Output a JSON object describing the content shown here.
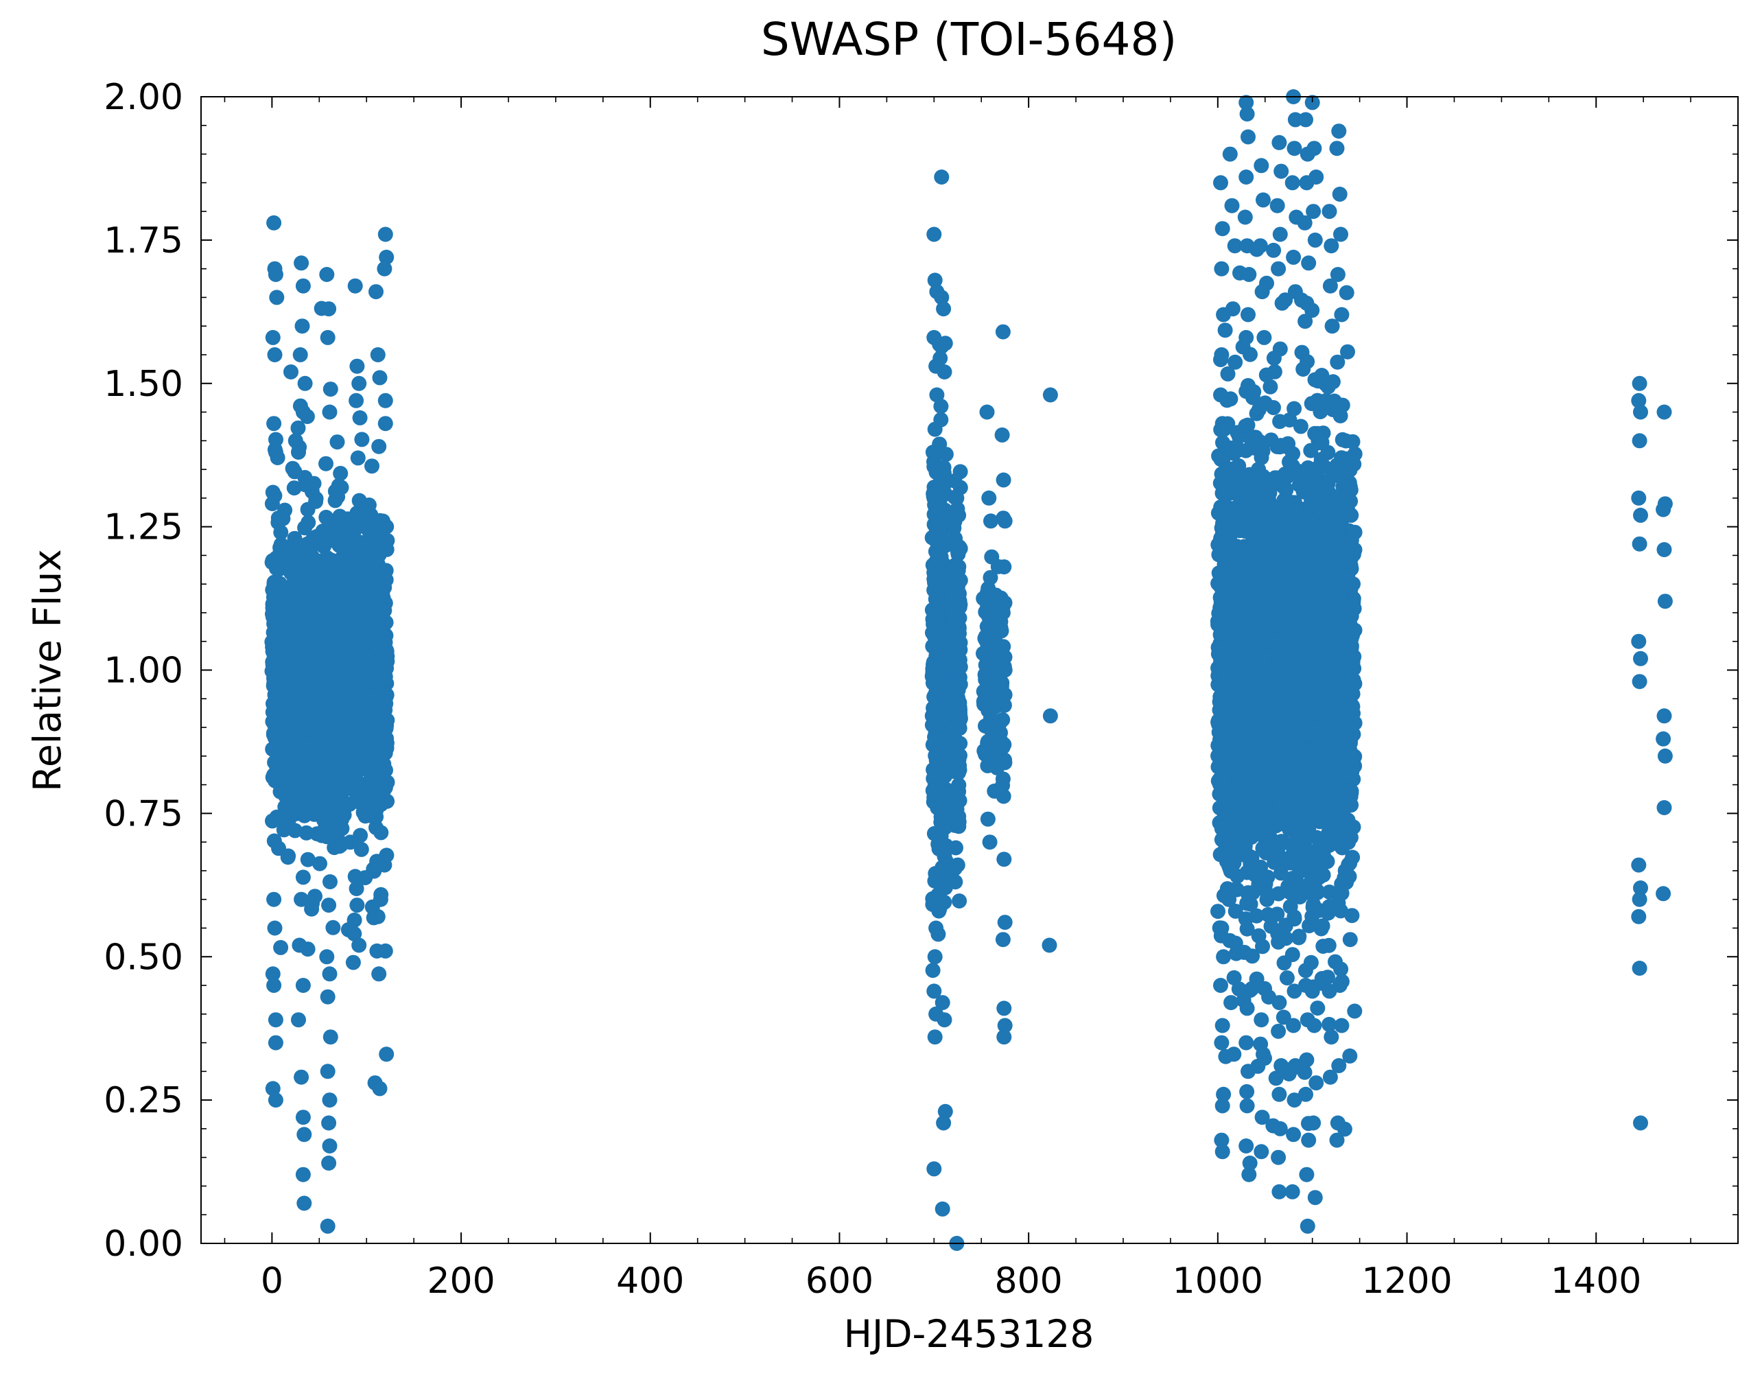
{
  "chart_data": {
    "type": "scatter",
    "title": "SWASP (TOI-5648)",
    "xlabel": "HJD-2453128",
    "ylabel": "Relative Flux",
    "xlim": [
      -75,
      1550
    ],
    "ylim": [
      0.0,
      2.0
    ],
    "xticks": [
      0,
      200,
      400,
      600,
      800,
      1000,
      1200,
      1400
    ],
    "xtick_labels": [
      "0",
      "200",
      "400",
      "600",
      "800",
      "1000",
      "1200",
      "1400"
    ],
    "yticks": [
      0.0,
      0.25,
      0.5,
      0.75,
      1.0,
      1.25,
      1.5,
      1.75,
      2.0
    ],
    "ytick_labels": [
      "0.00",
      "0.25",
      "0.50",
      "0.75",
      "1.00",
      "1.25",
      "1.50",
      "1.75",
      "2.00"
    ],
    "grid": false,
    "marker_color": "#1f77b4",
    "series": [
      {
        "points": [
          [
            2,
            1.78
          ],
          [
            3,
            1.7
          ],
          [
            4,
            1.69
          ],
          [
            5,
            1.65
          ],
          [
            1,
            1.58
          ],
          [
            3,
            1.55
          ],
          [
            2,
            1.43
          ],
          [
            4,
            1.38
          ],
          [
            1,
            1.31
          ],
          [
            2,
            0.6
          ],
          [
            3,
            0.55
          ],
          [
            1,
            0.47
          ],
          [
            2,
            0.45
          ],
          [
            4,
            0.39
          ],
          [
            4,
            0.35
          ],
          [
            1,
            0.27
          ],
          [
            4,
            0.25
          ],
          [
            20,
            1.52
          ],
          [
            25,
            1.4
          ],
          [
            31,
            1.71
          ],
          [
            33,
            1.67
          ],
          [
            32,
            1.6
          ],
          [
            30,
            1.55
          ],
          [
            35,
            1.5
          ],
          [
            33,
            1.45
          ],
          [
            28,
            1.38
          ],
          [
            31,
            0.6
          ],
          [
            29,
            0.52
          ],
          [
            33,
            0.45
          ],
          [
            28,
            0.39
          ],
          [
            31,
            0.29
          ],
          [
            33,
            0.22
          ],
          [
            34,
            0.19
          ],
          [
            33,
            0.12
          ],
          [
            34,
            0.07
          ],
          [
            58,
            1.69
          ],
          [
            60,
            1.63
          ],
          [
            59,
            1.58
          ],
          [
            62,
            1.49
          ],
          [
            61,
            1.45
          ],
          [
            57,
            1.36
          ],
          [
            60,
            0.59
          ],
          [
            58,
            0.5
          ],
          [
            61,
            0.47
          ],
          [
            59,
            0.43
          ],
          [
            62,
            0.36
          ],
          [
            59,
            0.3
          ],
          [
            61,
            0.25
          ],
          [
            60,
            0.21
          ],
          [
            61,
            0.17
          ],
          [
            60,
            0.14
          ],
          [
            59,
            0.03
          ],
          [
            88,
            1.67
          ],
          [
            90,
            1.53
          ],
          [
            92,
            1.5
          ],
          [
            89,
            1.47
          ],
          [
            93,
            1.44
          ],
          [
            91,
            1.37
          ],
          [
            88,
            0.64
          ],
          [
            90,
            0.59
          ],
          [
            87,
            0.54
          ],
          [
            92,
            0.52
          ],
          [
            86,
            0.49
          ],
          [
            110,
            1.66
          ],
          [
            112,
            1.55
          ],
          [
            114,
            1.51
          ],
          [
            113,
            1.39
          ],
          [
            115,
            0.6
          ],
          [
            112,
            0.57
          ],
          [
            111,
            0.51
          ],
          [
            113,
            0.47
          ],
          [
            109,
            0.28
          ],
          [
            114,
            0.27
          ],
          [
            120,
            1.76
          ],
          [
            121,
            1.72
          ],
          [
            119,
            1.7
          ],
          [
            120,
            1.47
          ],
          [
            120,
            1.43
          ],
          [
            121,
            1.25
          ],
          [
            119,
            0.66
          ],
          [
            120,
            0.51
          ],
          [
            121,
            0.33
          ],
          [
            700,
            1.76
          ],
          [
            701,
            1.68
          ],
          [
            703,
            1.66
          ],
          [
            700,
            1.58
          ],
          [
            702,
            1.53
          ],
          [
            703,
            1.48
          ],
          [
            701,
            1.42
          ],
          [
            699,
            1.38
          ],
          [
            700,
            0.6
          ],
          [
            702,
            0.55
          ],
          [
            701,
            0.5
          ],
          [
            700,
            0.44
          ],
          [
            702,
            0.4
          ],
          [
            701,
            0.36
          ],
          [
            700,
            0.13
          ],
          [
            708,
            1.86
          ],
          [
            708,
            1.65
          ],
          [
            710,
            1.63
          ],
          [
            712,
            1.57
          ],
          [
            711,
            1.52
          ],
          [
            709,
            0.42
          ],
          [
            711,
            0.39
          ],
          [
            712,
            0.23
          ],
          [
            710,
            0.21
          ],
          [
            709,
            0.06
          ],
          [
            722,
            1.33
          ],
          [
            724,
            1.3
          ],
          [
            726,
            1.27
          ],
          [
            723,
            0.69
          ],
          [
            725,
            0.66
          ],
          [
            724,
            0.0
          ],
          [
            756,
            1.45
          ],
          [
            758,
            1.3
          ],
          [
            760,
            1.26
          ],
          [
            757,
            0.74
          ],
          [
            759,
            0.7
          ],
          [
            773,
            1.59
          ],
          [
            772,
            1.41
          ],
          [
            775,
            1.26
          ],
          [
            774,
            1.18
          ],
          [
            773,
            1.1
          ],
          [
            775,
            1.0
          ],
          [
            774,
            0.87
          ],
          [
            773,
            0.81
          ],
          [
            774,
            0.67
          ],
          [
            775,
            0.56
          ],
          [
            773,
            0.53
          ],
          [
            774,
            0.41
          ],
          [
            775,
            0.38
          ],
          [
            774,
            0.36
          ],
          [
            823,
            1.48
          ],
          [
            823,
            0.92
          ],
          [
            822,
            0.52
          ],
          [
            1003,
            1.85
          ],
          [
            1005,
            1.77
          ],
          [
            1004,
            1.7
          ],
          [
            1006,
            1.62
          ],
          [
            1004,
            1.55
          ],
          [
            1003,
            1.48
          ],
          [
            1005,
            1.43
          ],
          [
            1004,
            0.55
          ],
          [
            1006,
            0.5
          ],
          [
            1003,
            0.45
          ],
          [
            1005,
            0.38
          ],
          [
            1004,
            0.35
          ],
          [
            1006,
            0.26
          ],
          [
            1005,
            0.24
          ],
          [
            1004,
            0.18
          ],
          [
            1005,
            0.16
          ],
          [
            1013,
            1.9
          ],
          [
            1015,
            1.81
          ],
          [
            1018,
            1.74
          ],
          [
            1016,
            1.63
          ],
          [
            1014,
            0.42
          ],
          [
            1017,
            0.33
          ],
          [
            1030,
            1.99
          ],
          [
            1031,
            1.97
          ],
          [
            1032,
            1.93
          ],
          [
            1030,
            1.86
          ],
          [
            1029,
            1.79
          ],
          [
            1031,
            1.74
          ],
          [
            1033,
            1.69
          ],
          [
            1032,
            1.62
          ],
          [
            1030,
            1.58
          ],
          [
            1031,
            0.41
          ],
          [
            1030,
            0.35
          ],
          [
            1032,
            0.3
          ],
          [
            1031,
            0.24
          ],
          [
            1030,
            0.17
          ],
          [
            1033,
            0.12
          ],
          [
            1034,
            0.14
          ],
          [
            1046,
            1.88
          ],
          [
            1048,
            1.82
          ],
          [
            1045,
            1.74
          ],
          [
            1047,
            1.66
          ],
          [
            1049,
            1.58
          ],
          [
            1046,
            0.39
          ],
          [
            1048,
            0.33
          ],
          [
            1047,
            0.22
          ],
          [
            1046,
            0.16
          ],
          [
            1065,
            1.92
          ],
          [
            1067,
            1.87
          ],
          [
            1063,
            1.81
          ],
          [
            1066,
            1.76
          ],
          [
            1064,
            1.7
          ],
          [
            1068,
            1.64
          ],
          [
            1066,
            1.56
          ],
          [
            1065,
            0.42
          ],
          [
            1064,
            0.37
          ],
          [
            1067,
            0.31
          ],
          [
            1065,
            0.26
          ],
          [
            1066,
            0.2
          ],
          [
            1064,
            0.15
          ],
          [
            1065,
            0.09
          ],
          [
            1080,
            2.0
          ],
          [
            1082,
            1.96
          ],
          [
            1081,
            1.91
          ],
          [
            1079,
            1.85
          ],
          [
            1083,
            1.79
          ],
          [
            1080,
            1.72
          ],
          [
            1082,
            1.66
          ],
          [
            1081,
            0.44
          ],
          [
            1080,
            0.38
          ],
          [
            1082,
            0.31
          ],
          [
            1081,
            0.25
          ],
          [
            1080,
            0.19
          ],
          [
            1079,
            0.09
          ],
          [
            1093,
            1.96
          ],
          [
            1095,
            1.9
          ],
          [
            1094,
            1.85
          ],
          [
            1092,
            1.78
          ],
          [
            1096,
            1.71
          ],
          [
            1094,
            1.64
          ],
          [
            1093,
            0.45
          ],
          [
            1095,
            0.39
          ],
          [
            1094,
            0.32
          ],
          [
            1093,
            0.26
          ],
          [
            1096,
            0.18
          ],
          [
            1094,
            0.12
          ],
          [
            1095,
            0.03
          ],
          [
            1100,
            1.99
          ],
          [
            1102,
            1.91
          ],
          [
            1104,
            1.86
          ],
          [
            1101,
            1.8
          ],
          [
            1103,
            1.75
          ],
          [
            1100,
            0.44
          ],
          [
            1102,
            0.38
          ],
          [
            1104,
            0.28
          ],
          [
            1101,
            0.21
          ],
          [
            1103,
            0.08
          ],
          [
            1118,
            1.8
          ],
          [
            1120,
            1.74
          ],
          [
            1119,
            1.67
          ],
          [
            1121,
            1.6
          ],
          [
            1118,
            0.44
          ],
          [
            1120,
            0.36
          ],
          [
            1119,
            0.29
          ],
          [
            1128,
            1.94
          ],
          [
            1126,
            1.91
          ],
          [
            1129,
            1.83
          ],
          [
            1130,
            1.76
          ],
          [
            1127,
            1.69
          ],
          [
            1131,
            1.62
          ],
          [
            1130,
            0.58
          ],
          [
            1129,
            0.45
          ],
          [
            1131,
            0.38
          ],
          [
            1128,
            0.31
          ],
          [
            1127,
            0.21
          ],
          [
            1126,
            0.18
          ],
          [
            1140,
            1.32
          ],
          [
            1141,
            1.27
          ],
          [
            1139,
            0.64
          ],
          [
            1140,
            0.53
          ],
          [
            1446,
            1.5
          ],
          [
            1445,
            1.47
          ],
          [
            1447,
            1.45
          ],
          [
            1446,
            1.4
          ],
          [
            1445,
            1.3
          ],
          [
            1447,
            1.27
          ],
          [
            1446,
            1.22
          ],
          [
            1445,
            1.05
          ],
          [
            1447,
            1.02
          ],
          [
            1446,
            0.98
          ],
          [
            1445,
            0.66
          ],
          [
            1447,
            0.62
          ],
          [
            1446,
            0.6
          ],
          [
            1445,
            0.57
          ],
          [
            1446,
            0.48
          ],
          [
            1447,
            0.21
          ],
          [
            1472,
            1.45
          ],
          [
            1473,
            1.29
          ],
          [
            1471,
            1.28
          ],
          [
            1472,
            1.21
          ],
          [
            1473,
            1.12
          ],
          [
            1472,
            0.92
          ],
          [
            1471,
            0.88
          ],
          [
            1473,
            0.85
          ],
          [
            1472,
            0.76
          ],
          [
            1471,
            0.61
          ]
        ],
        "dense_clouds": [
          {
            "x": [
              0,
              122
            ],
            "y_center": 1.0,
            "y_spread": 0.18,
            "count": 1800
          },
          {
            "x": [
              0,
              122
            ],
            "y_center": 1.0,
            "y_spread": 0.28,
            "count": 500
          },
          {
            "x": [
              698,
              713
            ],
            "y_center": 1.0,
            "y_spread": 0.33,
            "count": 350
          },
          {
            "x": [
              718,
              728
            ],
            "y_center": 0.98,
            "y_spread": 0.22,
            "count": 220
          },
          {
            "x": [
              752,
              775
            ],
            "y_center": 1.0,
            "y_spread": 0.17,
            "count": 150
          },
          {
            "x": [
              1000,
              1145
            ],
            "y_center": 1.0,
            "y_spread": 0.28,
            "count": 2300
          },
          {
            "x": [
              1000,
              1145
            ],
            "y_center": 1.0,
            "y_spread": 0.45,
            "count": 700
          }
        ]
      }
    ]
  }
}
